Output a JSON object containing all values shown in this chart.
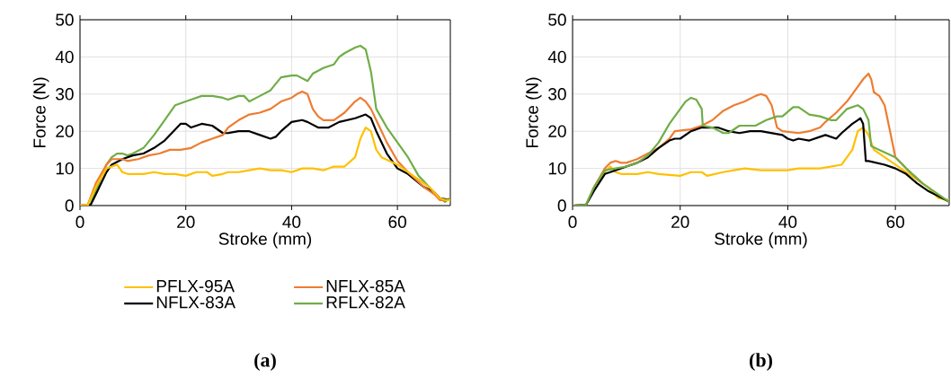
{
  "chart_data": [
    {
      "type": "line",
      "title": "(a)",
      "xlabel": "Stroke (mm)",
      "ylabel": "Force (N)",
      "xlim": [
        0,
        70
      ],
      "ylim": [
        0,
        50
      ],
      "xticks": [
        0,
        20,
        40,
        60
      ],
      "yticks": [
        0,
        10,
        20,
        30,
        40,
        50
      ],
      "grid": true,
      "legend": "bottom",
      "series": [
        {
          "name": "PFLX-95A",
          "color": "#ffc000",
          "x": [
            0,
            1.5,
            3,
            5,
            7,
            8,
            9,
            12,
            14,
            16,
            18,
            20,
            22,
            24,
            25,
            27,
            28,
            30,
            32,
            34,
            36,
            38,
            40,
            42,
            44,
            46,
            48,
            50,
            52,
            53,
            54,
            55,
            56,
            57,
            60,
            63,
            66,
            68,
            69,
            70
          ],
          "values": [
            0,
            0.2,
            5,
            10,
            11,
            9,
            8.5,
            8.5,
            9,
            8.5,
            8.5,
            8,
            9,
            9,
            8,
            8.5,
            9,
            9,
            9.5,
            10,
            9.5,
            9.5,
            9,
            10,
            10,
            9.5,
            10.5,
            10.5,
            13,
            18,
            21,
            20,
            15,
            13,
            11,
            8,
            5,
            2,
            1.5,
            1.5
          ]
        },
        {
          "name": "NFLX-85A",
          "color": "#ed7d31",
          "x": [
            0,
            1.5,
            3,
            5,
            6,
            8,
            9,
            11,
            13,
            15,
            17,
            19,
            21,
            23,
            25,
            27,
            28,
            30,
            32,
            34,
            36,
            38,
            40,
            41,
            42,
            43,
            44,
            45,
            46,
            48,
            50,
            52,
            53,
            54,
            55,
            57,
            58,
            60,
            62,
            65,
            67,
            68,
            70
          ],
          "values": [
            0,
            0.3,
            6,
            11,
            12.5,
            12.5,
            12,
            12.5,
            13.5,
            14,
            15,
            15,
            15.5,
            17,
            18,
            19,
            21,
            23,
            24.5,
            25,
            26,
            28,
            29,
            30,
            30.7,
            30,
            26,
            24,
            23,
            23,
            25,
            28,
            29,
            28,
            26,
            20,
            17,
            12,
            9,
            5,
            3,
            1.5,
            1.5
          ]
        },
        {
          "name": "NFLX-83A",
          "color": "#000000",
          "x": [
            0,
            2,
            3,
            5,
            6,
            8,
            10,
            12,
            14,
            16,
            18,
            19,
            20,
            21,
            23,
            25,
            27,
            28,
            30,
            32,
            34,
            36,
            37,
            38,
            40,
            42,
            43,
            45,
            47,
            49,
            52,
            53,
            54,
            55,
            56,
            58,
            60,
            62,
            65,
            67,
            68,
            70
          ],
          "values": [
            0,
            0.2,
            3,
            9,
            11,
            12.5,
            13.5,
            14,
            15.5,
            17.5,
            20.5,
            22,
            22,
            21,
            22,
            21.5,
            19.5,
            19.5,
            20,
            20,
            19,
            18,
            18.5,
            20,
            22.5,
            23,
            22.5,
            21,
            21,
            22.5,
            23.5,
            24,
            24.5,
            23.5,
            20,
            14,
            10,
            8.5,
            5,
            3.5,
            2,
            1.5
          ]
        },
        {
          "name": "RFLX-82A",
          "color": "#70ad47",
          "x": [
            0,
            2,
            3,
            5,
            6,
            7,
            8,
            9,
            10,
            12,
            14,
            16,
            18,
            20,
            21,
            23,
            25,
            27,
            28,
            30,
            31,
            32,
            34,
            36,
            38,
            40,
            41,
            43,
            44,
            46,
            48,
            49,
            50,
            52,
            53,
            54,
            55,
            56,
            58,
            60,
            62,
            64,
            66,
            68,
            69,
            70
          ],
          "values": [
            0,
            0.2,
            4,
            11,
            13,
            14,
            14,
            13.5,
            14,
            15.5,
            19,
            23,
            27,
            28,
            28.5,
            29.5,
            29.5,
            29,
            28.5,
            29.5,
            29.5,
            28,
            29.5,
            31,
            34.5,
            35,
            35,
            33.5,
            35.5,
            37,
            38,
            40,
            41,
            42.5,
            43,
            42,
            36,
            26,
            21,
            17,
            13,
            8,
            5,
            2,
            1,
            2
          ]
        }
      ]
    },
    {
      "type": "line",
      "title": "(b)",
      "xlabel": "Stroke (mm)",
      "ylabel": "Force (N)",
      "xlim": [
        0,
        70
      ],
      "ylim": [
        0,
        50
      ],
      "xticks": [
        0,
        20,
        40,
        60
      ],
      "yticks": [
        0,
        10,
        20,
        30,
        40,
        50
      ],
      "grid": true,
      "series": [
        {
          "color": "#ffc000",
          "x": [
            4,
            6,
            7,
            8,
            9,
            12,
            14,
            16,
            20,
            22,
            24,
            25,
            28,
            30,
            32,
            35,
            38,
            40,
            42,
            46,
            48,
            50,
            52,
            53,
            54,
            55,
            56,
            58,
            60,
            63,
            66,
            68,
            70
          ],
          "values": [
            5,
            9,
            10.5,
            9,
            8.5,
            8.5,
            9,
            8.5,
            8,
            9,
            9,
            8,
            9,
            9.5,
            10,
            9.5,
            9.5,
            9.5,
            10,
            10,
            10.5,
            11,
            15,
            20,
            21,
            19,
            15,
            13,
            11,
            8,
            5,
            2,
            1.5
          ]
        },
        {
          "color": "#ed7d31",
          "x": [
            0,
            2.5,
            4,
            6,
            7,
            8,
            9,
            10,
            12,
            14,
            16,
            18,
            19,
            22,
            24,
            26,
            28,
            30,
            32,
            34,
            35,
            36,
            37,
            38,
            39,
            42,
            44,
            46,
            47,
            49,
            51,
            53,
            54,
            55,
            55.5,
            56,
            57,
            58,
            59,
            60,
            62,
            65
          ],
          "values": [
            0,
            0.2,
            5,
            10,
            11.5,
            12,
            11.5,
            11.5,
            12.5,
            14,
            15.5,
            18,
            20,
            20.5,
            21.5,
            23,
            25.5,
            27,
            28,
            29.5,
            30,
            29.5,
            27,
            21,
            20,
            19.5,
            20,
            21,
            22.5,
            25,
            28,
            32,
            34,
            35.5,
            34,
            30.5,
            29.5,
            27,
            20,
            13,
            10,
            6
          ]
        },
        {
          "color": "#000000",
          "x": [
            0,
            2.5,
            4,
            6,
            8,
            10,
            12,
            14,
            16,
            18,
            19,
            20,
            22,
            24,
            27,
            29,
            31,
            33,
            35,
            37,
            39,
            40,
            41,
            42,
            44,
            46,
            47,
            49,
            50,
            52,
            53,
            53.5,
            54,
            54.5,
            55,
            58,
            60,
            62,
            64,
            66,
            68,
            70
          ],
          "values": [
            0,
            0.2,
            4,
            8.5,
            9.5,
            10.5,
            11.5,
            13,
            15.5,
            17.5,
            18,
            18,
            20,
            21,
            21,
            20,
            19.5,
            20,
            20,
            19.5,
            19,
            18,
            17.5,
            18,
            17.5,
            18.5,
            19,
            18,
            19.5,
            22,
            23,
            23.5,
            22,
            12,
            12,
            11,
            10,
            8.5,
            6,
            4,
            2.5,
            1
          ]
        },
        {
          "color": "#70ad47",
          "x": [
            0,
            2.5,
            4,
            6,
            8,
            10,
            12,
            14,
            16,
            18,
            20,
            21,
            22,
            23,
            24,
            24.2,
            26,
            28,
            29,
            31,
            34,
            36,
            38,
            39,
            41,
            42,
            44,
            46,
            48,
            49,
            51,
            53,
            54,
            55,
            55.5,
            57,
            60,
            62,
            65,
            68,
            70
          ],
          "values": [
            0,
            0.2,
            5,
            9.5,
            10,
            10.5,
            11.5,
            13.5,
            17,
            22,
            26,
            28,
            29,
            28.5,
            26,
            21.5,
            21,
            19.5,
            19.5,
            21.5,
            21.5,
            23,
            24,
            24,
            26.5,
            26.5,
            24.5,
            24,
            23,
            23,
            26,
            27,
            26,
            23,
            16,
            15,
            13,
            10,
            6,
            3,
            1
          ]
        }
      ]
    }
  ]
}
